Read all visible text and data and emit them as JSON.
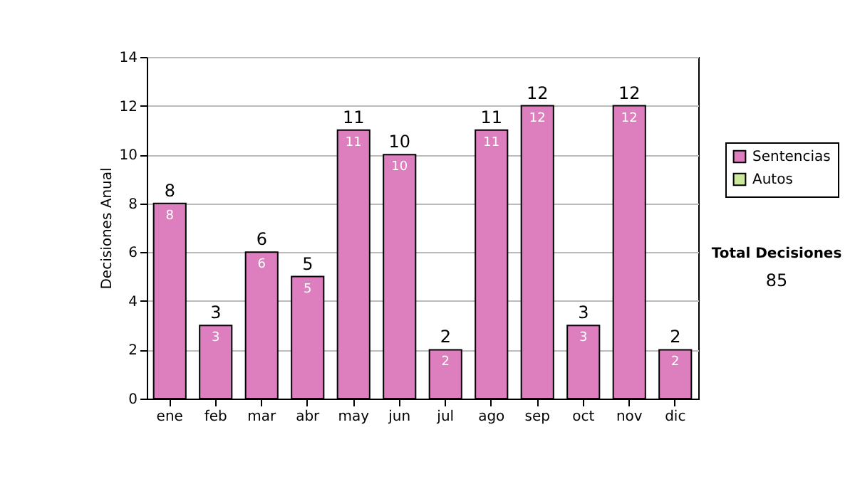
{
  "chart_data": {
    "type": "bar",
    "ylabel": "Decisiones Anual",
    "categories": [
      "ene",
      "feb",
      "mar",
      "abr",
      "may",
      "jun",
      "jul",
      "ago",
      "sep",
      "oct",
      "nov",
      "dic"
    ],
    "series": [
      {
        "name": "Sentencias",
        "color": "#dd7fbf",
        "values": [
          8,
          3,
          6,
          5,
          11,
          10,
          2,
          11,
          12,
          3,
          12,
          2
        ]
      },
      {
        "name": "Autos",
        "color": "#cce89a",
        "values": [
          null,
          null,
          null,
          null,
          null,
          null,
          null,
          null,
          null,
          null,
          null,
          null
        ]
      }
    ],
    "stacked": true,
    "data_labels": true,
    "totals": [
      "8",
      "3",
      "6",
      "5",
      "11",
      "10",
      "2",
      "11",
      "12",
      "3",
      "12",
      "2"
    ],
    "ylim": [
      0,
      14
    ],
    "yticks": [
      0,
      2,
      4,
      6,
      8,
      10,
      12,
      14
    ],
    "grid": "y",
    "legend": "right",
    "annotations": [
      "Total Decisiones",
      "85"
    ]
  }
}
